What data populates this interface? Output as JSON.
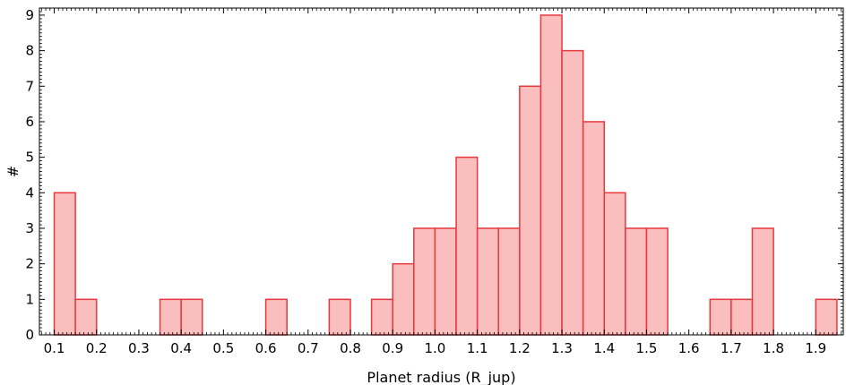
{
  "chart_data": {
    "type": "bar",
    "title": "",
    "xlabel": "Planet radius (R_jup)",
    "ylabel": "#",
    "bin_width": 0.05,
    "bin_starts": [
      0.1,
      0.15,
      0.2,
      0.25,
      0.3,
      0.35,
      0.4,
      0.45,
      0.5,
      0.55,
      0.6,
      0.65,
      0.7,
      0.75,
      0.8,
      0.85,
      0.9,
      0.95,
      1.0,
      1.05,
      1.1,
      1.15,
      1.2,
      1.25,
      1.3,
      1.35,
      1.4,
      1.45,
      1.5,
      1.55,
      1.6,
      1.65,
      1.7,
      1.75,
      1.8,
      1.85,
      1.9
    ],
    "counts": [
      4,
      1,
      0,
      0,
      0,
      1,
      1,
      0,
      0,
      0,
      1,
      0,
      0,
      1,
      0,
      1,
      2,
      3,
      3,
      5,
      3,
      3,
      7,
      9,
      8,
      6,
      4,
      3,
      3,
      0,
      0,
      1,
      1,
      3,
      0,
      0,
      1
    ],
    "xlim": [
      0.065,
      1.965
    ],
    "ylim": [
      0,
      9.2
    ],
    "xticks": [
      "0.1",
      "0.2",
      "0.3",
      "0.4",
      "0.5",
      "0.6",
      "0.7",
      "0.8",
      "0.9",
      "1.0",
      "1.1",
      "1.2",
      "1.3",
      "1.4",
      "1.5",
      "1.6",
      "1.7",
      "1.8",
      "1.9"
    ],
    "yticks": [
      "0",
      "1",
      "2",
      "3",
      "4",
      "5",
      "6",
      "7",
      "8",
      "9"
    ],
    "bar_fill": "#fbbebe",
    "bar_stroke": "#e8383d",
    "grid": false
  }
}
